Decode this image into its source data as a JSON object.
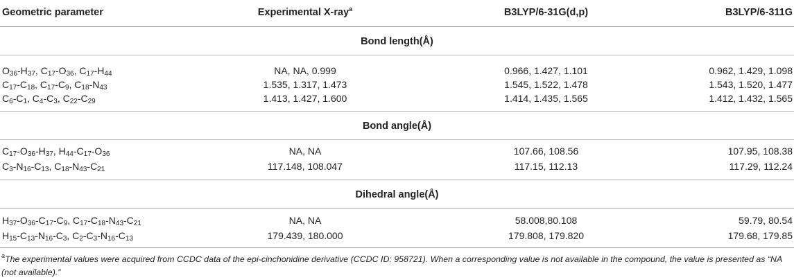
{
  "header": {
    "col1": "Geometric parameter",
    "col2": "Experimental X-ray",
    "col2_sup": "a",
    "col3": "B3LYP/6-31G(d,p)",
    "col4": "B3LYP/6-311G"
  },
  "sections": {
    "bond_length": "Bond length(Å)",
    "bond_angle": "Bond angle(Å)",
    "dihedral_angle": "Dihedral angle(Å)"
  },
  "rows": {
    "bl1": {
      "exp": "NA, NA, 0.999",
      "b631": "0.966, 1.427, 1.101",
      "b6311": "0.962, 1.429, 1.098"
    },
    "bl2": {
      "exp": "1.535, 1.317, 1.473",
      "b631": "1.545, 1.522, 1.478",
      "b6311": "1.543, 1.520, 1.477"
    },
    "bl3": {
      "exp": "1.413, 1.427, 1.600",
      "b631": "1.414, 1.435, 1.565",
      "b6311": "1.412, 1.432, 1.565"
    },
    "ba1": {
      "exp": "NA, NA",
      "b631": "107.66, 108.56",
      "b6311": "107.95, 108.38"
    },
    "ba2": {
      "exp": "117.148, 108.047",
      "b631": "117.15, 112.13",
      "b6311": "117.29, 112.24"
    },
    "da1": {
      "exp": "NA, NA",
      "b631": "58.008,80.108",
      "b6311": "59.79, 80.54"
    },
    "da2": {
      "exp": "179.439, 180.000",
      "b631": "179.808, 179.820",
      "b6311": "179.68, 179.85"
    }
  },
  "params": {
    "bl1": [
      "O",
      "36",
      "-H",
      "37",
      ", C",
      "17",
      "-O",
      "36",
      ", C",
      "17",
      "-H",
      "44"
    ],
    "bl2": [
      "C",
      "17",
      "-C",
      "18",
      ", C",
      "17",
      "-C",
      "9",
      ", C",
      "18",
      "-N",
      "43"
    ],
    "bl3": [
      "C",
      "6",
      "-C",
      "1",
      ", C",
      "4",
      "-C",
      "3",
      ", C",
      "22",
      "-C",
      "29"
    ],
    "ba1": [
      "C",
      "17",
      "-O",
      "36",
      "-H",
      "37",
      ", H",
      "44",
      "-C",
      "17",
      "-O",
      "36"
    ],
    "ba2": [
      "C",
      "3",
      "-N",
      "16",
      "-C",
      "13",
      ", C",
      "18",
      "-N",
      "43",
      "-C",
      "21"
    ],
    "da1": [
      "H",
      "37",
      "-O",
      "36",
      "-C",
      "17",
      "-C",
      "9",
      ", C",
      "17",
      "-C",
      "18",
      "-N",
      "43",
      "-C",
      "21"
    ],
    "da2": [
      "H",
      "15",
      "-C",
      "13",
      "-N",
      "16",
      "-C",
      "3",
      ", C",
      "2",
      "-C",
      "3",
      "-N",
      "16",
      "-C",
      "13"
    ]
  },
  "footnote": {
    "mark": "a",
    "text": "The experimental values were acquired from CCDC data of the epi-cinchonidine derivative (CCDC ID: 958721). When a corresponding value is not available in the compound, the value is presented as “NA (not available).”"
  }
}
